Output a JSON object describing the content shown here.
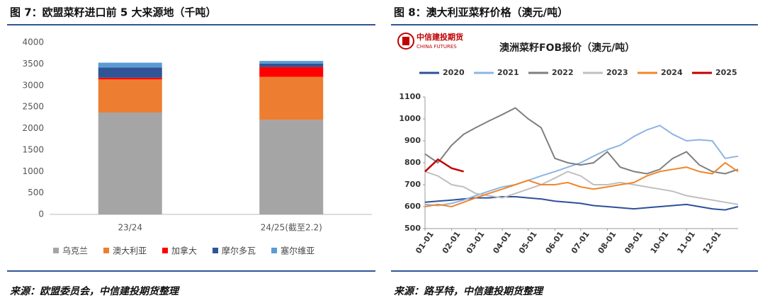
{
  "chart_data": [
    {
      "type": "bar",
      "stacked": true,
      "title": "图 7：欧盟菜籽进口前 5 大来源地（千吨）",
      "source": "来源：欧盟委员会，中信建投期货整理",
      "categories": [
        "23/24",
        "24/25(截至2.2)"
      ],
      "series": [
        {
          "name": "乌克兰",
          "color": "#a5a5a5",
          "values": [
            2370,
            2200
          ]
        },
        {
          "name": "澳大利亚",
          "color": "#ed7d31",
          "values": [
            770,
            1000
          ]
        },
        {
          "name": "加拿大",
          "color": "#ff0000",
          "values": [
            40,
            230
          ]
        },
        {
          "name": "摩尔多瓦",
          "color": "#2f5597",
          "values": [
            240,
            80
          ]
        },
        {
          "name": "塞尔维亚",
          "color": "#5b9bd5",
          "values": [
            110,
            60
          ]
        }
      ],
      "ylim": [
        0,
        4000
      ],
      "yticks": [
        0,
        500,
        1000,
        1500,
        2000,
        2500,
        3000,
        3500,
        4000
      ],
      "legend": "bottom"
    },
    {
      "type": "line",
      "title": "图 8：澳大利亚菜籽价格（澳元/吨）",
      "source": "来源：路孚特，中信建投期货整理",
      "subtitle": "澳洲菜籽FOB报价（澳元/吨）",
      "logo": [
        "中信建投期货",
        "CHINA FUTURES"
      ],
      "x": [
        1,
        16,
        32,
        46,
        60,
        75,
        91,
        106,
        121,
        136,
        152,
        167,
        182,
        197,
        213,
        228,
        244,
        259,
        274,
        289,
        305,
        320,
        335,
        350,
        365
      ],
      "series": [
        {
          "name": "2020",
          "color": "#2e4f9a",
          "values": [
            620,
            625,
            630,
            635,
            640,
            640,
            645,
            645,
            640,
            635,
            625,
            620,
            615,
            605,
            600,
            595,
            590,
            595,
            600,
            605,
            610,
            600,
            590,
            585,
            600
          ]
        },
        {
          "name": "2021",
          "color": "#8eb4e3",
          "values": [
            610,
            605,
            615,
            630,
            650,
            670,
            690,
            700,
            720,
            740,
            760,
            780,
            800,
            830,
            860,
            880,
            920,
            950,
            970,
            930,
            900,
            905,
            900,
            820,
            830
          ]
        },
        {
          "name": "2022",
          "color": "#7f7f7f",
          "values": [
            840,
            800,
            880,
            930,
            960,
            990,
            1020,
            1050,
            1000,
            960,
            820,
            800,
            790,
            800,
            850,
            780,
            760,
            750,
            770,
            820,
            850,
            790,
            760,
            750,
            770
          ]
        },
        {
          "name": "2023",
          "color": "#bfbfbf",
          "values": [
            760,
            740,
            700,
            690,
            660,
            650,
            640,
            660,
            680,
            700,
            730,
            760,
            740,
            700,
            700,
            710,
            700,
            690,
            680,
            670,
            650,
            640,
            630,
            620,
            610
          ]
        },
        {
          "name": "2024",
          "color": "#f0862d",
          "values": [
            600,
            610,
            600,
            620,
            640,
            660,
            680,
            700,
            720,
            700,
            700,
            710,
            690,
            680,
            690,
            700,
            710,
            740,
            760,
            770,
            780,
            760,
            750,
            800,
            760
          ]
        },
        {
          "name": "2025",
          "color": "#c00000",
          "values": [
            760,
            815,
            775,
            760,
            null,
            null,
            null,
            null,
            null,
            null,
            null,
            null,
            null,
            null,
            null,
            null,
            null,
            null,
            null,
            null,
            null,
            null,
            null,
            null,
            null
          ]
        }
      ],
      "xlim": [
        1,
        365
      ],
      "xticks": [
        {
          "value": 1,
          "label": "01-01"
        },
        {
          "value": 32,
          "label": "02-01"
        },
        {
          "value": 60,
          "label": "03-01"
        },
        {
          "value": 91,
          "label": "04-01"
        },
        {
          "value": 121,
          "label": "05-01"
        },
        {
          "value": 152,
          "label": "06-01"
        },
        {
          "value": 182,
          "label": "07-01"
        },
        {
          "value": 213,
          "label": "08-01"
        },
        {
          "value": 244,
          "label": "09-01"
        },
        {
          "value": 274,
          "label": "10-01"
        },
        {
          "value": 305,
          "label": "11-01"
        },
        {
          "value": 335,
          "label": "12-01"
        }
      ],
      "ylim": [
        500,
        1100
      ],
      "yticks": [
        500,
        600,
        700,
        800,
        900,
        1000,
        1100
      ],
      "legend": "top"
    }
  ]
}
